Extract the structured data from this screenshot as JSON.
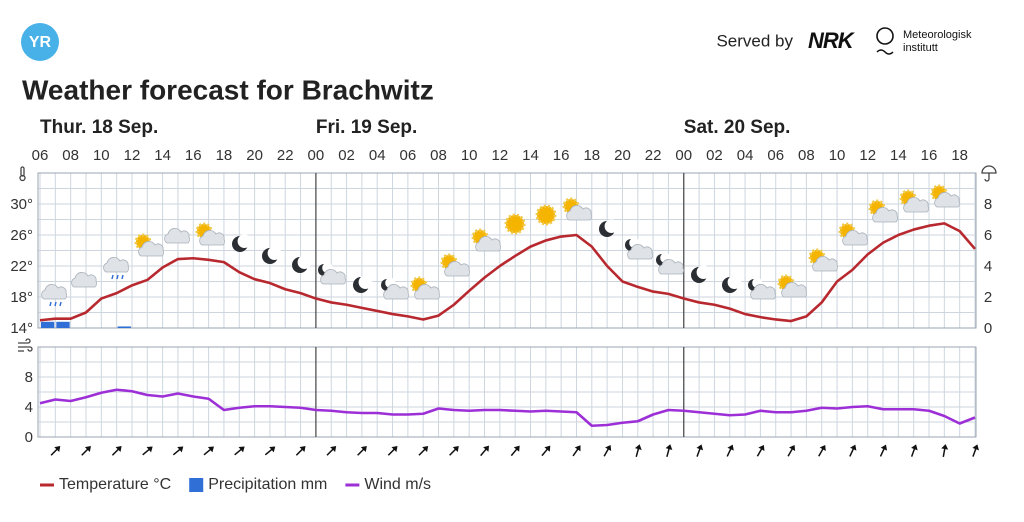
{
  "header": {
    "logo": "YR",
    "served_by": "Served by",
    "nrk": "NRK",
    "met_line1": "Meteorologisk",
    "met_line2": "institutt"
  },
  "chart_data": [
    {
      "type": "line",
      "title": "Weather forecast for Brachwitz",
      "x": [
        0,
        1,
        2,
        3,
        4,
        5,
        6,
        7,
        8,
        9,
        10,
        11,
        12,
        13,
        14,
        15,
        16,
        17,
        18,
        19,
        20,
        21,
        22,
        23,
        24,
        25,
        26,
        27,
        28,
        29,
        30,
        31,
        32,
        33,
        34,
        35,
        36,
        37,
        38,
        39,
        40,
        41,
        42,
        43,
        44,
        45,
        46,
        47,
        48,
        49,
        50,
        51,
        52,
        53,
        54,
        55,
        56,
        57,
        58,
        59,
        60,
        61
      ],
      "xlim": [
        0,
        61
      ],
      "xticks": [
        {
          "value": 0,
          "label": "06"
        },
        {
          "value": 2,
          "label": "08"
        },
        {
          "value": 4,
          "label": "10"
        },
        {
          "value": 6,
          "label": "12"
        },
        {
          "value": 8,
          "label": "14"
        },
        {
          "value": 10,
          "label": "16"
        },
        {
          "value": 12,
          "label": "18"
        },
        {
          "value": 14,
          "label": "20"
        },
        {
          "value": 16,
          "label": "22"
        },
        {
          "value": 18,
          "label": "00"
        },
        {
          "value": 20,
          "label": "02"
        },
        {
          "value": 22,
          "label": "04"
        },
        {
          "value": 24,
          "label": "06"
        },
        {
          "value": 26,
          "label": "08"
        },
        {
          "value": 28,
          "label": "10"
        },
        {
          "value": 30,
          "label": "12"
        },
        {
          "value": 32,
          "label": "14"
        },
        {
          "value": 34,
          "label": "16"
        },
        {
          "value": 36,
          "label": "18"
        },
        {
          "value": 38,
          "label": "20"
        },
        {
          "value": 40,
          "label": "22"
        },
        {
          "value": 42,
          "label": "00"
        },
        {
          "value": 44,
          "label": "02"
        },
        {
          "value": 46,
          "label": "04"
        },
        {
          "value": 48,
          "label": "06"
        },
        {
          "value": 50,
          "label": "08"
        },
        {
          "value": 52,
          "label": "10"
        },
        {
          "value": 54,
          "label": "12"
        },
        {
          "value": 56,
          "label": "14"
        },
        {
          "value": 58,
          "label": "16"
        },
        {
          "value": 60,
          "label": "18"
        }
      ],
      "days": [
        {
          "label": "Thur. 18 Sep.",
          "start": 0
        },
        {
          "label": "Fri. 19 Sep.",
          "start": 18
        },
        {
          "label": "Sat. 20 Sep.",
          "start": 42
        }
      ],
      "ylim": [
        14,
        34
      ],
      "yticks": [
        {
          "value": 14,
          "label": "14°"
        },
        {
          "value": 18,
          "label": "18°"
        },
        {
          "value": 22,
          "label": "22°"
        },
        {
          "value": 26,
          "label": "26°"
        },
        {
          "value": 30,
          "label": "30°"
        }
      ],
      "y2lim": [
        0,
        10
      ],
      "y2ticks": [
        0,
        2,
        4,
        6,
        8
      ],
      "grid": true,
      "series": [
        {
          "name": "Temperature °C",
          "color": "#b8292f",
          "values": [
            15.0,
            15.2,
            15.2,
            16.0,
            17.8,
            18.5,
            19.5,
            20.2,
            21.8,
            22.9,
            23.0,
            22.8,
            22.5,
            21.2,
            20.3,
            19.8,
            19.0,
            18.5,
            17.8,
            17.3,
            17.0,
            16.6,
            16.2,
            15.8,
            15.5,
            15.1,
            15.6,
            17.0,
            18.8,
            20.5,
            22.0,
            23.3,
            24.5,
            25.3,
            25.8,
            26.0,
            24.5,
            22.0,
            20.0,
            19.3,
            18.7,
            18.4,
            17.8,
            17.3,
            17.0,
            16.5,
            15.8,
            15.4,
            15.1,
            14.9,
            15.5,
            17.3,
            20.0,
            21.5,
            23.5,
            25.0,
            26.0,
            26.7,
            27.2,
            27.5,
            26.5,
            24.2
          ]
        },
        {
          "name": "Precipitation mm",
          "color": "#2f6fd6",
          "type": "bar",
          "axis": "y2",
          "values": [
            0.4,
            0.4,
            0,
            0,
            0,
            0.1,
            0,
            0,
            0,
            0,
            0,
            0,
            0,
            0,
            0,
            0,
            0,
            0,
            0,
            0,
            0,
            0,
            0,
            0,
            0,
            0,
            0,
            0,
            0,
            0,
            0,
            0,
            0,
            0,
            0,
            0,
            0,
            0,
            0,
            0,
            0,
            0,
            0,
            0,
            0,
            0,
            0,
            0,
            0,
            0,
            0,
            0,
            0,
            0,
            0,
            0,
            0,
            0,
            0,
            0,
            0,
            0
          ]
        }
      ]
    },
    {
      "type": "line",
      "ylim": [
        0,
        12
      ],
      "yticks": [
        0,
        4,
        8
      ],
      "grid": true,
      "series": [
        {
          "name": "Wind m/s",
          "color": "#9c2fd6",
          "values": [
            4.5,
            5.0,
            4.8,
            5.3,
            5.9,
            6.3,
            6.1,
            5.6,
            5.4,
            5.8,
            5.4,
            5.1,
            3.6,
            3.9,
            4.1,
            4.1,
            4.0,
            3.9,
            3.6,
            3.5,
            3.3,
            3.2,
            3.2,
            3.0,
            3.0,
            3.1,
            3.8,
            3.6,
            3.5,
            3.6,
            3.6,
            3.5,
            3.4,
            3.5,
            3.4,
            3.3,
            1.5,
            1.6,
            1.9,
            2.1,
            3.0,
            3.6,
            3.5,
            3.3,
            3.1,
            2.9,
            3.0,
            3.5,
            3.3,
            3.3,
            3.5,
            3.9,
            3.8,
            4.0,
            4.1,
            3.7,
            3.7,
            3.7,
            3.5,
            2.8,
            1.8,
            2.6
          ]
        }
      ],
      "wind_direction_x": [
        1,
        3,
        5,
        7,
        9,
        11,
        13,
        15,
        17,
        19,
        21,
        23,
        25,
        27,
        29,
        31,
        33,
        35,
        37,
        39,
        41,
        43,
        45,
        47,
        49,
        51,
        53,
        55,
        57,
        59,
        61
      ],
      "wind_direction": [
        45,
        45,
        45,
        50,
        50,
        50,
        50,
        50,
        45,
        45,
        45,
        45,
        45,
        45,
        40,
        40,
        40,
        35,
        30,
        15,
        15,
        20,
        25,
        30,
        30,
        30,
        25,
        25,
        20,
        10,
        20
      ]
    }
  ]
}
